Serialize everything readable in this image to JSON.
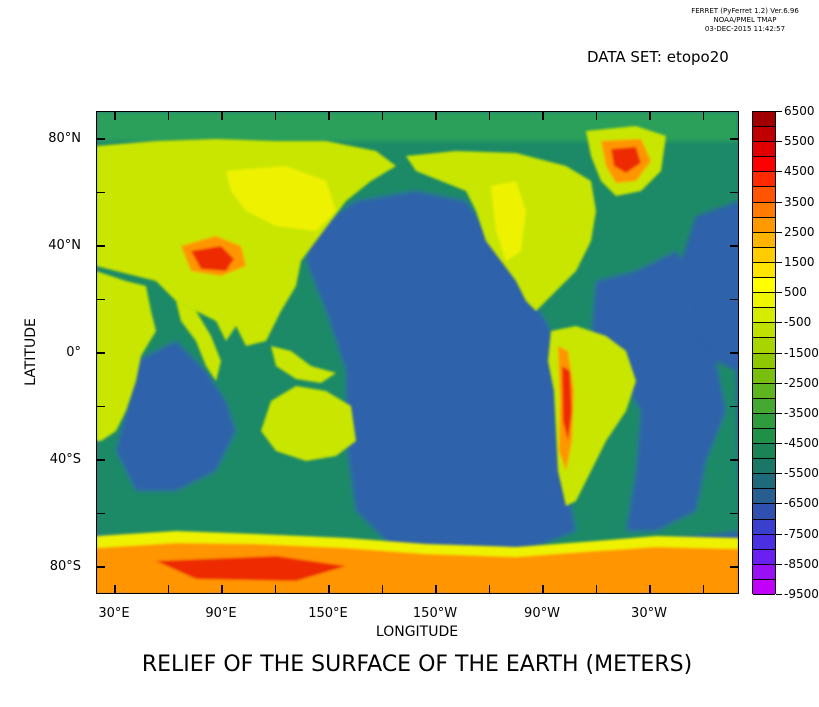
{
  "header": {
    "line1": "FERRET (PyFerret 1.2) Ver.6.96",
    "line2": "NOAA/PMEL TMAP",
    "line3": "03-DEC-2015 11:42:57"
  },
  "dataset_label": "DATA SET: etopo20",
  "title": "RELIEF OF THE SURFACE OF THE EARTH (METERS)",
  "axes": {
    "xlabel": "LONGITUDE",
    "ylabel": "LATITUDE",
    "x_ticks": [
      "30°E",
      "90°E",
      "150°E",
      "150°W",
      "90°W",
      "30°W"
    ],
    "y_ticks": [
      "80°N",
      "40°N",
      "0°",
      "40°S",
      "80°S"
    ]
  },
  "colorbar": {
    "labels": [
      "6500",
      "5500",
      "4500",
      "3500",
      "2500",
      "1500",
      "500",
      "-500",
      "-1500",
      "-2500",
      "-3500",
      "-4500",
      "-5500",
      "-6500",
      "-7500",
      "-8500",
      "-9500"
    ],
    "colors": [
      "#a00000",
      "#c00000",
      "#e00000",
      "#ff0000",
      "#ff2a00",
      "#ff5500",
      "#ff7a00",
      "#ff9900",
      "#ffb400",
      "#ffcc00",
      "#ffe400",
      "#ffff00",
      "#eef500",
      "#d4ec00",
      "#bfe000",
      "#a8d400",
      "#8fc800",
      "#78bf10",
      "#5fb520",
      "#45a830",
      "#2e9c3c",
      "#1f9048",
      "#1a8456",
      "#1a7766",
      "#1f6a7a",
      "#265e90",
      "#3050b0",
      "#3a40cc",
      "#4a30e0",
      "#6a20f0",
      "#9810f4",
      "#c000f8"
    ]
  },
  "map": {
    "colors": {
      "ocean_deep": "#2e62aa",
      "ocean_mid": "#1d8a66",
      "shelf": "#2aa05a",
      "lowland": "#c8e600",
      "upland": "#eef200",
      "high": "#ff9500",
      "very_high": "#ee2a00",
      "summit": "#cc0000"
    }
  }
}
